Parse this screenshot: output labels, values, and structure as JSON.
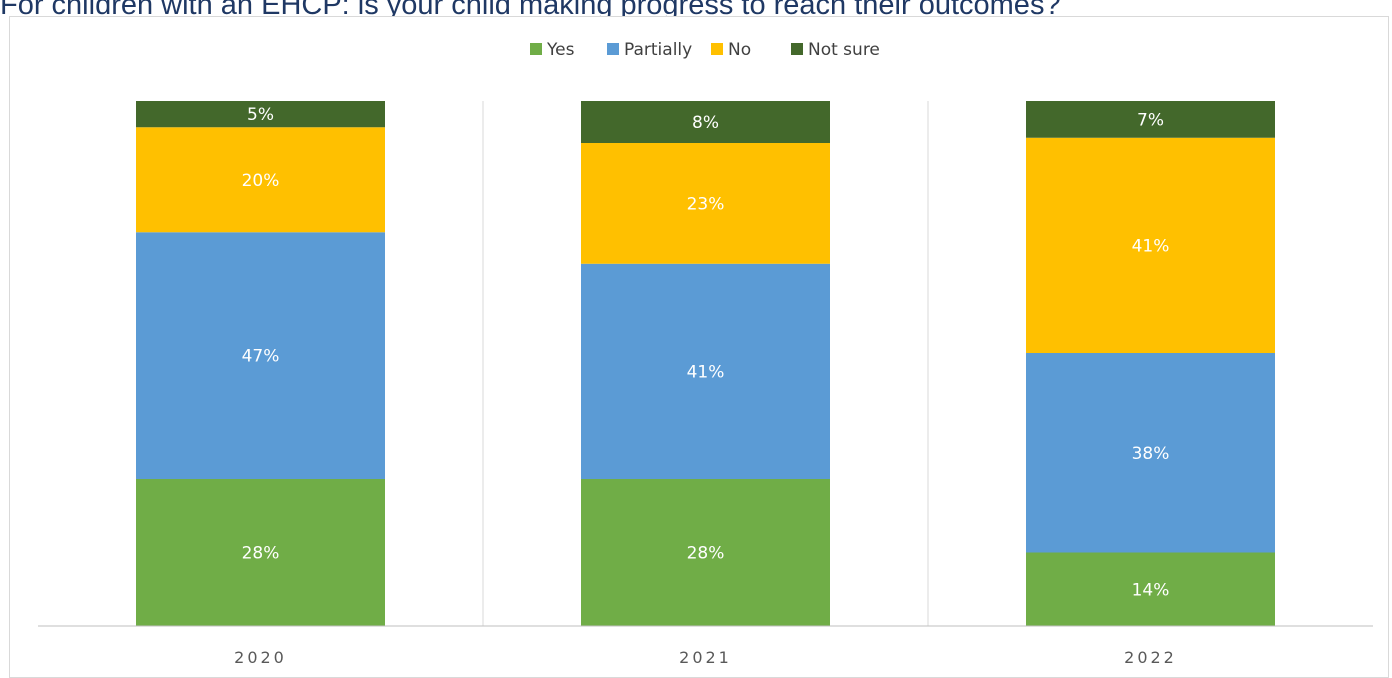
{
  "title": "For children with an EHCP: is your child making progress to reach their outcomes?",
  "chart_data": {
    "type": "bar",
    "stacked": true,
    "percent_stacked": true,
    "categories": [
      "2020",
      "2021",
      "2022"
    ],
    "series": [
      {
        "name": "Yes",
        "color": "#70ad47",
        "values": [
          28,
          28,
          14
        ],
        "labels": [
          "28%",
          "28%",
          "14%"
        ]
      },
      {
        "name": "Partially",
        "color": "#5b9bd5",
        "values": [
          47,
          41,
          38
        ],
        "labels": [
          "47%",
          "41%",
          "38%"
        ]
      },
      {
        "name": "No",
        "color": "#ffc000",
        "values": [
          20,
          23,
          41
        ],
        "labels": [
          "20%",
          "23%",
          "41%"
        ]
      },
      {
        "name": "Not sure",
        "color": "#43682b",
        "values": [
          5,
          8,
          7
        ],
        "labels": [
          "5%",
          "8%",
          "7%"
        ]
      }
    ],
    "legend_position": "top",
    "grid": false
  }
}
